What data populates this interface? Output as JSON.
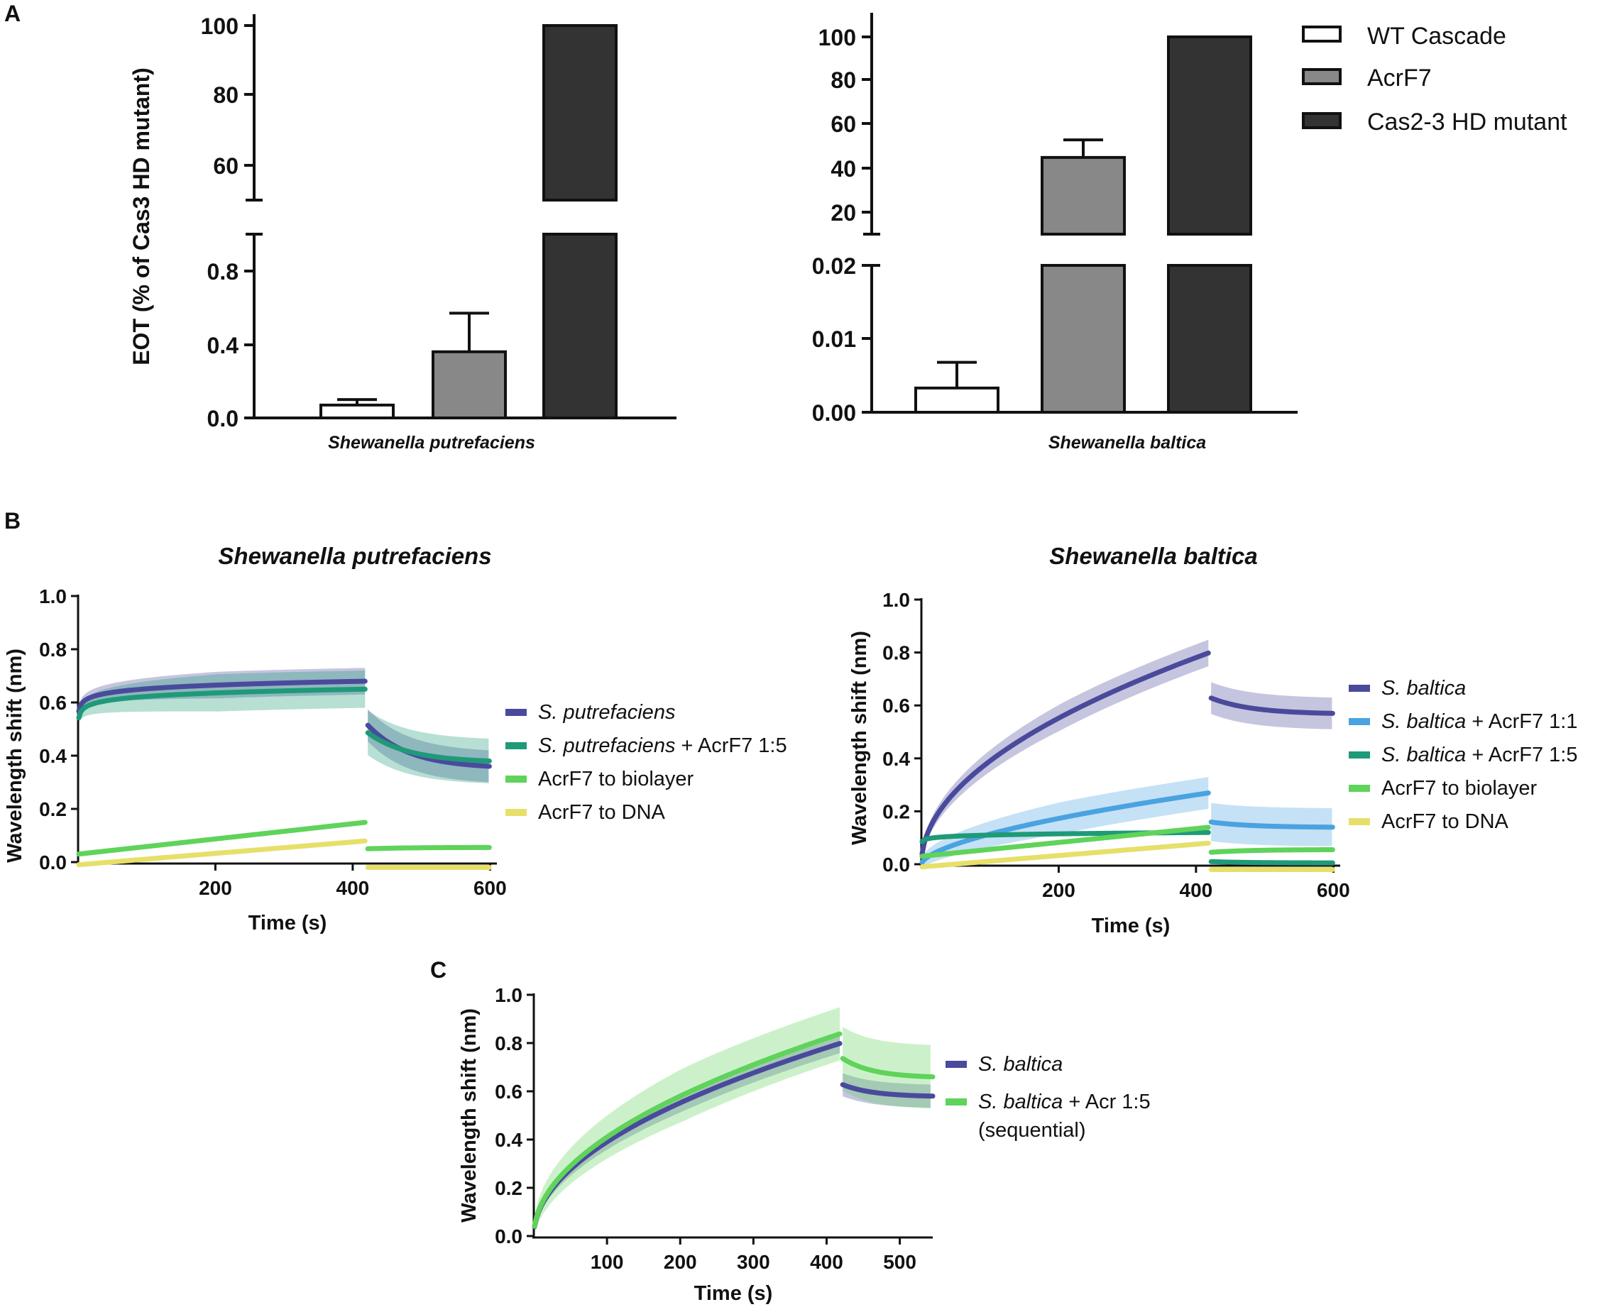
{
  "chart_data": [
    {
      "panel": "A",
      "type": "bar",
      "ylabel": "EOT (% of Cas3 HD mutant)",
      "xlabel": "Shewanella putrefaciens",
      "categories": [
        "WT Cascade",
        "AcrF7",
        "Cas2-3 HD mutant"
      ],
      "values": [
        0.07,
        0.36,
        100
      ],
      "error_up": [
        0.03,
        0.21,
        0
      ],
      "axis_break": true,
      "lower_ylim": [
        0,
        1.0
      ],
      "upper_ylim": [
        50,
        100
      ],
      "lower_ticks": [
        "0.0",
        "0.4",
        "0.8"
      ],
      "upper_ticks": [
        "60",
        "80",
        "100"
      ]
    },
    {
      "panel": "A",
      "type": "bar",
      "xlabel": "Shewanella baltica",
      "categories": [
        "WT Cascade",
        "AcrF7",
        "Cas2-3 HD mutant"
      ],
      "values": [
        0.0033,
        45,
        100
      ],
      "error_up": [
        0.0035,
        8,
        0
      ],
      "axis_break": true,
      "lower_ylim": [
        0,
        0.02
      ],
      "upper_ylim": [
        10,
        100
      ],
      "lower_ticks": [
        "0.00",
        "0.01",
        "0.02"
      ],
      "upper_ticks": [
        "20",
        "40",
        "60",
        "80",
        "100"
      ],
      "legend": [
        "WT Cascade",
        "AcrF7",
        "Cas2-3 HD mutant"
      ]
    },
    {
      "panel": "B",
      "type": "line",
      "title": "Shewanella putrefaciens",
      "xlabel": "Time (s)",
      "ylabel": "Wavelength shift (nm)",
      "xlim": [
        0,
        610
      ],
      "ylim": [
        0,
        1.0
      ],
      "xticks": [
        "200",
        "400",
        "600"
      ],
      "yticks": [
        "0.0",
        "0.2",
        "0.4",
        "0.6",
        "0.8",
        "1.0"
      ],
      "series": [
        {
          "name": "S. putrefaciens",
          "italic": "S. putrefaciens",
          "rest": "",
          "assoc_end": 0.68,
          "assoc_rate": 0.03,
          "dissoc_start": 0.52,
          "dissoc_end": 0.36,
          "band": 0.05,
          "color": "#4a4a9c"
        },
        {
          "name": "S. putrefaciens + AcrF7 1:5",
          "italic": "S. putrefaciens",
          "rest": " + AcrF7 1:5",
          "assoc_end": 0.65,
          "assoc_rate": 0.03,
          "dissoc_start": 0.49,
          "dissoc_end": 0.38,
          "band": 0.07,
          "color": "#1f9a78"
        },
        {
          "name": "AcrF7 to biolayer",
          "italic": "",
          "rest": "AcrF7 to biolayer",
          "assoc_start": 0.03,
          "assoc_end": 0.15,
          "dissoc_start": 0.05,
          "dissoc_end": 0.055,
          "band": 0,
          "color": "#5fd35a"
        },
        {
          "name": "AcrF7 to DNA",
          "italic": "",
          "rest": "AcrF7 to DNA",
          "assoc_start": -0.01,
          "assoc_end": 0.08,
          "dissoc_start": -0.02,
          "dissoc_end": -0.02,
          "band": 0,
          "color": "#e6e06a"
        }
      ]
    },
    {
      "panel": "B",
      "type": "line",
      "title": "Shewanella baltica",
      "xlabel": "Time (s)",
      "ylabel": "Wavelength shift (nm)",
      "xlim": [
        0,
        610
      ],
      "ylim": [
        0,
        1.0
      ],
      "xticks": [
        "200",
        "400",
        "600"
      ],
      "yticks": [
        "0.0",
        "0.2",
        "0.4",
        "0.6",
        "0.8",
        "1.0"
      ],
      "series": [
        {
          "name": "S. baltica",
          "italic": "S. baltica",
          "rest": "",
          "assoc_end": 0.8,
          "assoc_rate": 0.5,
          "dissoc_start": 0.63,
          "dissoc_end": 0.57,
          "band": 0.05,
          "color": "#4a4a9c"
        },
        {
          "name": "S. baltica + AcrF7 1:1",
          "italic": "S. baltica",
          "rest": " + AcrF7 1:1",
          "assoc_end": 0.27,
          "assoc_rate": 0.6,
          "dissoc_start": 0.16,
          "dissoc_end": 0.14,
          "band": 0.06,
          "color": "#4aa3e0"
        },
        {
          "name": "S. baltica + AcrF7 1:5",
          "italic": "S. baltica",
          "rest": " + AcrF7 1:5",
          "assoc_start": 0.03,
          "assoc_end": 0.12,
          "assoc_rate": 0.08,
          "dissoc_start": 0.01,
          "dissoc_end": 0.005,
          "band": 0,
          "color": "#1f9a78"
        },
        {
          "name": "AcrF7 to biolayer",
          "italic": "",
          "rest": "AcrF7 to biolayer",
          "assoc_start": 0.03,
          "assoc_end": 0.14,
          "dissoc_start": 0.045,
          "dissoc_end": 0.055,
          "band": 0,
          "color": "#5fd35a"
        },
        {
          "name": "AcrF7 to DNA",
          "italic": "",
          "rest": "AcrF7 to DNA",
          "assoc_start": -0.01,
          "assoc_end": 0.08,
          "dissoc_start": -0.02,
          "dissoc_end": -0.02,
          "band": 0,
          "color": "#e6e06a"
        }
      ]
    },
    {
      "panel": "C",
      "type": "line",
      "xlabel": "Time (s)",
      "ylabel": "Wavelength shift (nm)",
      "xlim": [
        0,
        545
      ],
      "ylim": [
        0,
        1.0
      ],
      "xticks": [
        "100",
        "200",
        "300",
        "400",
        "500"
      ],
      "yticks": [
        "0.0",
        "0.2",
        "0.4",
        "0.6",
        "0.8",
        "1.0"
      ],
      "series": [
        {
          "name": "S. baltica",
          "italic": "S. baltica",
          "rest": "",
          "assoc_end": 0.8,
          "assoc_rate": 0.5,
          "dissoc_start": 0.63,
          "dissoc_end": 0.58,
          "band": 0.04,
          "color": "#4a4a9c"
        },
        {
          "name": "S. baltica + Acr 1:5 (sequential)",
          "italic": "S. baltica",
          "rest": " + Acr 1:5",
          "rest2": "(sequential)",
          "assoc_end": 0.84,
          "assoc_rate": 0.5,
          "dissoc_start": 0.74,
          "dissoc_end": 0.66,
          "band": 0.11,
          "color": "#5fd35a"
        }
      ]
    }
  ],
  "panel_labels": {
    "a": "A",
    "b": "B",
    "c": "C"
  }
}
